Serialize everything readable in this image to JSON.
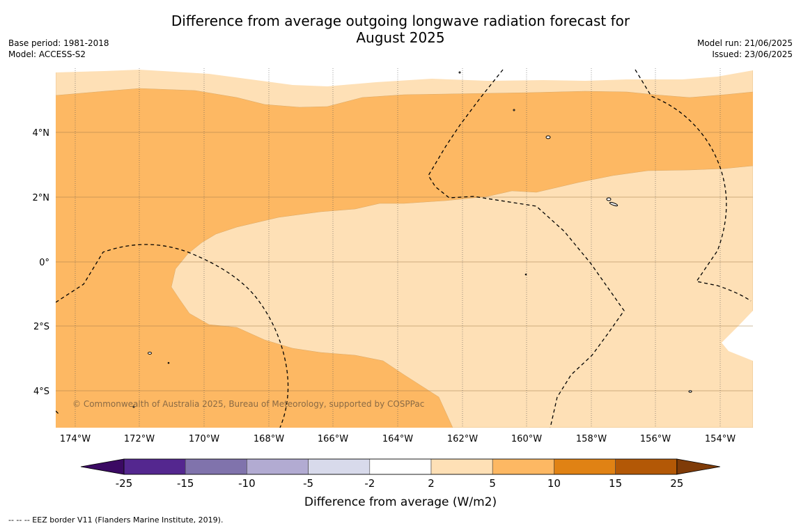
{
  "title_line1": "Difference from average outgoing longwave radiation forecast for",
  "title_line2": "August 2025",
  "base_period": "Base period: 1981-2018",
  "model": "Model: ACCESS-S2",
  "model_run": "Model run: 21/06/2025",
  "issued": "Issued: 23/06/2025",
  "copyright": "© Commonwealth of Australia 2025, Bureau of Meteorology, supported by COSPPac",
  "lat_labels": [
    "4°N",
    "2°N",
    "0°",
    "2°S",
    "4°S"
  ],
  "lon_labels": [
    "174°W",
    "172°W",
    "170°W",
    "168°W",
    "166°W",
    "164°W",
    "162°W",
    "160°W",
    "158°W",
    "156°W",
    "154°W"
  ],
  "colorbar": {
    "ticks": [
      "-25",
      "-15",
      "-10",
      "-5",
      "-2",
      "2",
      "5",
      "10",
      "15",
      "25"
    ],
    "colors": [
      "#3b0a63",
      "#54278f",
      "#8073ac",
      "#b2abd2",
      "#d8daeb",
      "#ffffff",
      "#fee0b6",
      "#fdb863",
      "#e08214",
      "#b35806",
      "#7f3b08"
    ],
    "label": "Difference from average (W/m2)"
  },
  "legend_note": "-- -- -- EEZ border V11 (Flanders Marine Institute, 2019)."
}
